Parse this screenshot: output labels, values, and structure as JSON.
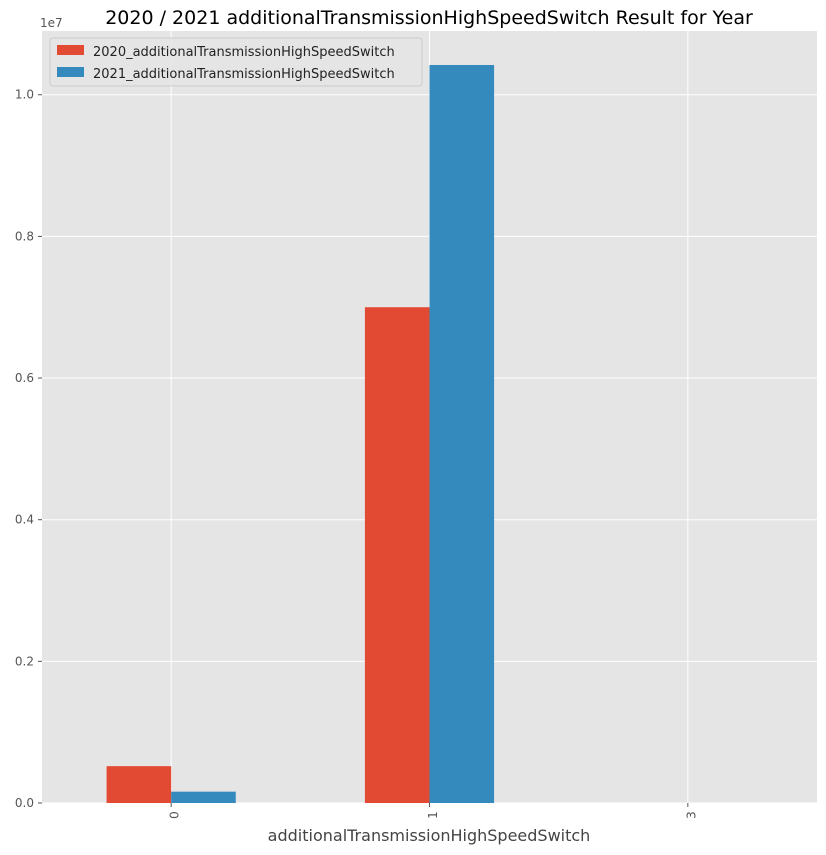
{
  "chart_data": {
    "type": "bar",
    "title": "2020 / 2021 additionalTransmissionHighSpeedSwitch Result for Year",
    "xlabel": "additionalTransmissionHighSpeedSwitch",
    "ylabel": "",
    "y_offset_label": "1e7",
    "categories": [
      "0",
      "1",
      "3"
    ],
    "series": [
      {
        "name": "2020_additionalTransmissionHighSpeedSwitch",
        "color": "#E24A33",
        "values": [
          520000,
          7000000,
          0
        ]
      },
      {
        "name": "2021_additionalTransmissionHighSpeedSwitch",
        "color": "#348ABD",
        "values": [
          160000,
          10420000,
          0
        ]
      }
    ],
    "ylim": [
      0,
      10900000
    ],
    "yticks": [
      0,
      2000000,
      4000000,
      6000000,
      8000000,
      10000000
    ],
    "ytick_labels": [
      "0.0",
      "0.2",
      "0.4",
      "0.6",
      "0.8",
      "1.0"
    ],
    "grid": true,
    "legend_position": "top-left",
    "background": "#E5E5E5"
  }
}
